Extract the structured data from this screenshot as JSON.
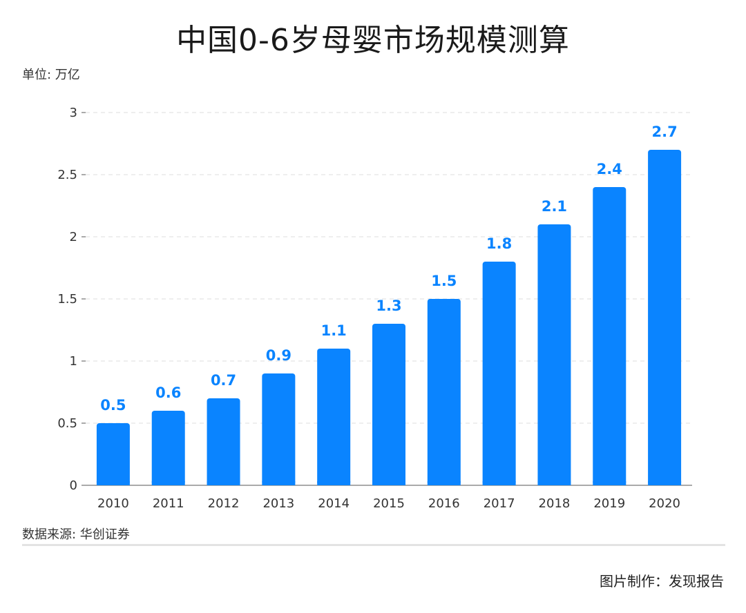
{
  "title": "中国0-6岁母婴市场规模测算",
  "unit_label": "单位: 万亿",
  "source_label": "数据来源: 华创证券",
  "credit_label": "图片制作：发现报告",
  "colors": {
    "bar": "#0a84ff",
    "data_label": "#0a84ff",
    "grid": "#dddddd",
    "axis": "#555555"
  },
  "chart_data": {
    "type": "bar",
    "title": "中国0-6岁母婴市场规模测算",
    "xlabel": "",
    "ylabel": "单位: 万亿",
    "categories": [
      "2010",
      "2011",
      "2012",
      "2013",
      "2014",
      "2015",
      "2016",
      "2017",
      "2018",
      "2019",
      "2020"
    ],
    "values": [
      0.5,
      0.6,
      0.7,
      0.9,
      1.1,
      1.3,
      1.5,
      1.8,
      2.1,
      2.4,
      2.7
    ],
    "data_labels": [
      "0.5",
      "0.6",
      "0.7",
      "0.9",
      "1.1",
      "1.3",
      "1.5",
      "1.8",
      "2.1",
      "2.4",
      "2.7"
    ],
    "ylim": [
      0,
      3
    ],
    "yticks": [
      0,
      0.5,
      1,
      1.5,
      2,
      2.5,
      3
    ],
    "ytick_labels": [
      "0",
      "0.5",
      "1",
      "1.5",
      "2",
      "2.5",
      "3"
    ],
    "grid": true,
    "legend": "none"
  }
}
